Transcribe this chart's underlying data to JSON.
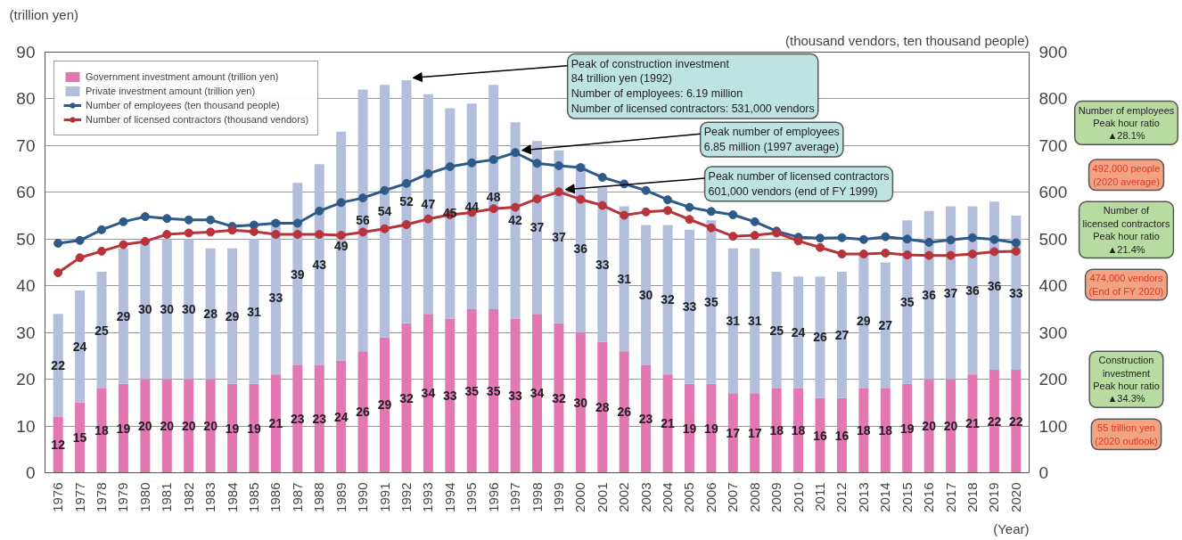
{
  "chart_data": {
    "type": "bar",
    "stacked": true,
    "ylabel": "(trillion yen)",
    "y2label": "(thousand vendors, ten thousand people)",
    "xlabel": "(Year)",
    "categories": [
      "1976",
      "1977",
      "1978",
      "1979",
      "1980",
      "1981",
      "1982",
      "1983",
      "1984",
      "1985",
      "1986",
      "1987",
      "1988",
      "1989",
      "1990",
      "1991",
      "1992",
      "1993",
      "1994",
      "1995",
      "1996",
      "1997",
      "1998",
      "1999",
      "2000",
      "2001",
      "2002",
      "2003",
      "2004",
      "2005",
      "2006",
      "2007",
      "2008",
      "2009",
      "2010",
      "2011",
      "2012",
      "2013",
      "2014",
      "2015",
      "2016",
      "2017",
      "2018",
      "2019",
      "2020"
    ],
    "series": [
      {
        "name": "Government investment amount (trillion yen)",
        "color": "#e377b0",
        "values": [
          12,
          15,
          18,
          19,
          20,
          20,
          20,
          20,
          19,
          19,
          21,
          23,
          23,
          24,
          26,
          29,
          32,
          34,
          33,
          35,
          35,
          33,
          34,
          32,
          30,
          28,
          26,
          23,
          21,
          19,
          19,
          17,
          17,
          18,
          18,
          16,
          16,
          18,
          18,
          19,
          20,
          20,
          21,
          22,
          22
        ],
        "value_labels": [
          "12",
          "15",
          "18",
          "19",
          "20",
          "20",
          "20",
          "20",
          "19",
          "19",
          "21",
          "23",
          "23",
          "24",
          "26",
          "29",
          "32",
          "34",
          "33",
          "35",
          "35",
          "33",
          "34",
          "32",
          "30",
          "28",
          "26",
          "23",
          "21",
          "19",
          "19",
          "17",
          "17",
          "18",
          "18",
          "16",
          "16",
          "18",
          "18",
          "19",
          "20",
          "20",
          "21",
          "22",
          "22"
        ]
      },
      {
        "name": "Private investment amount (trillion yen)",
        "color": "#b3bddc",
        "values": [
          22,
          24,
          25,
          29,
          30,
          30,
          30,
          28,
          29,
          31,
          33,
          39,
          43,
          49,
          56,
          54,
          52,
          47,
          45,
          44,
          48,
          42,
          37,
          37,
          36,
          33,
          31,
          30,
          32,
          33,
          35,
          31,
          31,
          25,
          24,
          26,
          27,
          29,
          27,
          35,
          36,
          37,
          36,
          36,
          33
        ],
        "value_labels": [
          "22",
          "24",
          "25",
          "29",
          "30",
          "30",
          "30",
          "28",
          "29",
          "31",
          "33",
          "39",
          "43",
          "49",
          "56",
          "54",
          "52",
          "47",
          "45",
          "44",
          "48",
          "42",
          "37",
          "37",
          "36",
          "33",
          "31",
          "30",
          "32",
          "33",
          "35",
          "31",
          "31",
          "25",
          "24",
          "26",
          "27",
          "29",
          "27",
          "35",
          "36",
          "37",
          "36",
          "36",
          "33"
        ]
      },
      {
        "name": "Number of employees (ten thousand people)",
        "type": "line",
        "axis": "y2",
        "marker": "circle",
        "color": "#2e5a8a",
        "values": [
          491,
          497,
          520,
          537,
          548,
          544,
          541,
          541,
          527,
          530,
          534,
          534,
          560,
          578,
          588,
          604,
          619,
          640,
          655,
          663,
          670,
          685,
          662,
          657,
          653,
          632,
          618,
          604,
          584,
          568,
          559,
          552,
          537,
          517,
          504,
          502,
          503,
          499,
          505,
          500,
          493,
          498,
          503,
          499,
          492
        ]
      },
      {
        "name": "Number of licensed contractors (thousand vendors)",
        "type": "line",
        "axis": "y2",
        "marker": "circle",
        "color": "#b8333a",
        "values": [
          428,
          460,
          474,
          488,
          495,
          510,
          513,
          515,
          519,
          516,
          510,
          510,
          510,
          508,
          515,
          522,
          531,
          543,
          552,
          557,
          565,
          568,
          586,
          601,
          585,
          572,
          551,
          558,
          561,
          542,
          524,
          506,
          508,
          513,
          496,
          482,
          468,
          468,
          470,
          466,
          465,
          465,
          468,
          473,
          474
        ]
      }
    ],
    "ylim": [
      0,
      90
    ],
    "yticks": [
      0,
      10,
      20,
      30,
      40,
      50,
      60,
      70,
      80,
      90
    ],
    "y2lim": [
      0,
      900
    ],
    "y2ticks": [
      0,
      100,
      200,
      300,
      400,
      500,
      600,
      700,
      800,
      900
    ],
    "grid": "y",
    "legend": "top left",
    "annotations": [
      {
        "text": "Peak of construction investment\n84 trillion yen (1992)\nNumber of employees: 6.19 million\nNumber of licensed contractors: 531,000 vendors",
        "x": "1992",
        "y": 84
      },
      {
        "text": "Peak number of employees\n6.85 million (1997 average)",
        "x": "1997",
        "y": 68.5
      },
      {
        "text": "Peak number of licensed contractors\n601,000 vendors (end of FY 1999)",
        "x": "1999",
        "y": 60.1
      },
      "Number of employees\nPeak hour ratio\n▲28.1%",
      "492,000 people\n(2020 average)",
      "Number of\nlicensed contractors\nPeak hour ratio\n▲21.4%",
      "474,000 vendors\n(End of FY 2020)",
      "Construction\ninvestment\nPeak hour ratio\n▲34.3%",
      "55 trillion yen\n(2020 outlook)"
    ]
  }
}
